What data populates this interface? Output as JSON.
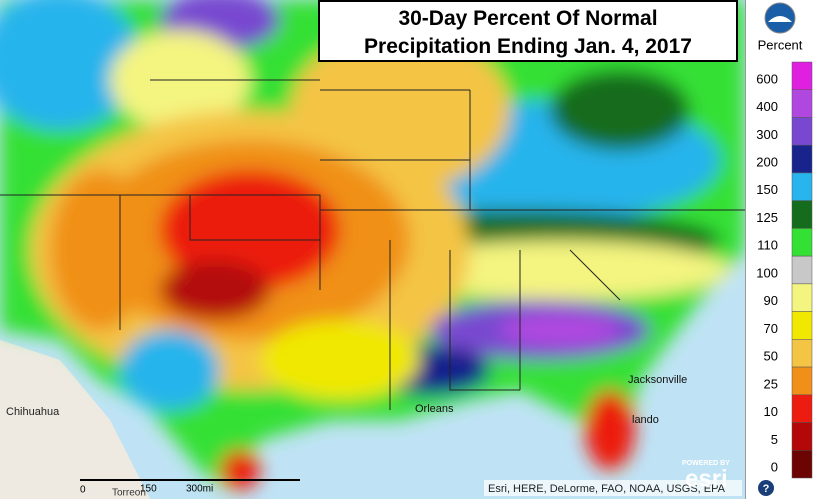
{
  "title": {
    "line1": "30-Day Percent Of Normal",
    "line2": "Precipitation Ending Jan. 4, 2017"
  },
  "legend": {
    "heading": "Percent",
    "items": [
      {
        "label": "600",
        "color": "#e020e0"
      },
      {
        "label": "400",
        "color": "#b048e0"
      },
      {
        "label": "300",
        "color": "#7848d0"
      },
      {
        "label": "200",
        "color": "#18248c"
      },
      {
        "label": "150",
        "color": "#28b4ec"
      },
      {
        "label": "125",
        "color": "#146c1c"
      },
      {
        "label": "110",
        "color": "#34e034"
      },
      {
        "label": "100",
        "color": "#c8c8c8"
      },
      {
        "label": "90",
        "color": "#f4f480"
      },
      {
        "label": "70",
        "color": "#f0e800"
      },
      {
        "label": "50",
        "color": "#f4c444"
      },
      {
        "label": "25",
        "color": "#f09018"
      },
      {
        "label": "10",
        "color": "#ec1c10"
      },
      {
        "label": "5",
        "color": "#b40808"
      },
      {
        "label": "0",
        "color": "#6c0404"
      }
    ]
  },
  "map_labels": {
    "chihuahua": "Chihuahua",
    "jacksonville": "Jacksonville",
    "orleans": "Orleans",
    "orlando": "lando",
    "torreon": "Torreon"
  },
  "scale_bar": {
    "zero": "0",
    "mid": "150",
    "end": "300mi"
  },
  "attribution": "Esri, HERE, DeLorme, FAO, NOAA, USGS, EPA",
  "esri": {
    "powered": "POWERED BY",
    "name": "esri"
  },
  "help": "?"
}
